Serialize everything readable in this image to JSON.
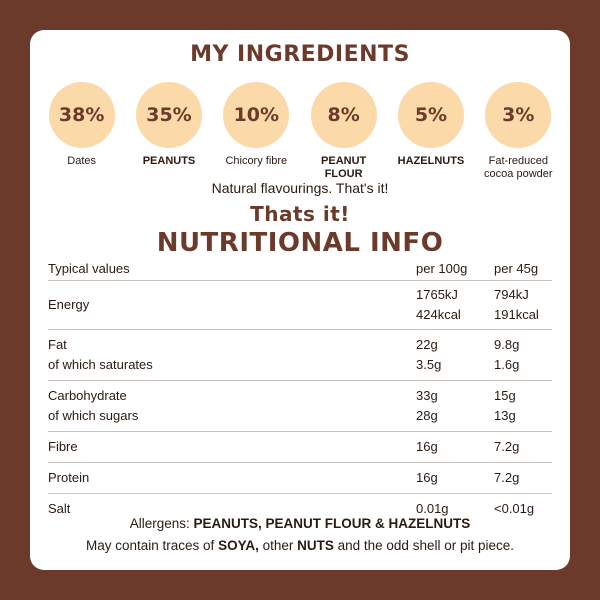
{
  "ingredients_heading": "My ingredients",
  "ingredients": [
    {
      "percent": "38%",
      "name": "Dates",
      "bold": false
    },
    {
      "percent": "35%",
      "name": "PEANUTS",
      "bold": true
    },
    {
      "percent": "10%",
      "name": "Chicory fibre",
      "bold": false
    },
    {
      "percent": "8%",
      "name": "PEANUT FLOUR",
      "bold": true
    },
    {
      "percent": "5%",
      "name": "HAZELNUTS",
      "bold": true
    },
    {
      "percent": "3%",
      "name": "Fat-reduced cocoa powder",
      "bold": false
    }
  ],
  "natural_note": "Natural flavourings. That's it!",
  "thats_it": "Thats it!",
  "nutrition_heading": "Nutritional info",
  "nutrition": {
    "header": {
      "label": "Typical values",
      "per100": "per 100g",
      "per45": "per 45g"
    },
    "rows": {
      "energy": {
        "label": "Energy",
        "per100_kj": "1765kJ",
        "per100_kcal": "424kcal",
        "per45_kj": "794kJ",
        "per45_kcal": "191kcal"
      },
      "fat": {
        "label": "Fat",
        "sub_label": "of which saturates",
        "per100": "22g",
        "per100_sub": "3.5g",
        "per45": "9.8g",
        "per45_sub": "1.6g"
      },
      "carbohydrate": {
        "label": "Carbohydrate",
        "sub_label": "of which sugars",
        "per100": "33g",
        "per100_sub": "28g",
        "per45": "15g",
        "per45_sub": "13g"
      },
      "fibre": {
        "label": "Fibre",
        "per100": "16g",
        "per45": "7.2g"
      },
      "protein": {
        "label": "Protein",
        "per100": "16g",
        "per45": "7.2g"
      },
      "salt": {
        "label": "Salt",
        "per100": "0.01g",
        "per45": "<0.01g"
      }
    }
  },
  "allergens": {
    "prefix": "Allergens: ",
    "list": "PEANUTS, PEANUT FLOUR & HAZELNUTS"
  },
  "traces": {
    "t1": "May contain traces of ",
    "b1": "SOYA,",
    "t2": " other ",
    "b2": "NUTS",
    "t3": " and the odd shell or pit piece."
  },
  "colors": {
    "background": "#6b3a2a",
    "card": "#ffffff",
    "circle": "#fbd9a8",
    "heading": "#6b3a2a"
  }
}
